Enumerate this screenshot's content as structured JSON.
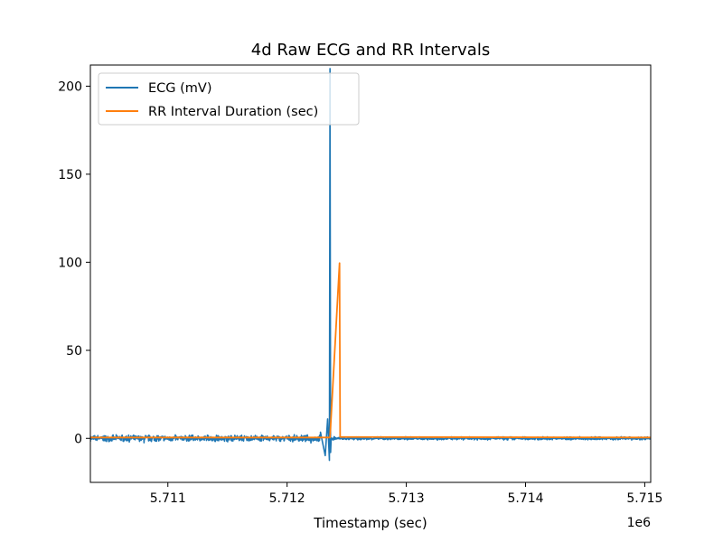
{
  "chart_data": {
    "type": "line",
    "title": "4d Raw ECG and RR Intervals",
    "xlabel": "Timestamp (sec)",
    "ylabel": "",
    "x_offset_label": "1e6",
    "xlim": [
      5.71035,
      5.71505
    ],
    "ylim": [
      -25,
      212
    ],
    "x_ticks": [
      5.711,
      5.712,
      5.713,
      5.714,
      5.715
    ],
    "x_tick_labels": [
      "5.711",
      "5.712",
      "5.713",
      "5.714",
      "5.715"
    ],
    "y_ticks": [
      0,
      50,
      100,
      150,
      200
    ],
    "y_tick_labels": [
      "0",
      "50",
      "100",
      "150",
      "200"
    ],
    "grid": false,
    "legend_position": "top-left",
    "series": [
      {
        "name": "ECG (mV)",
        "color": "#1f77b4",
        "baseline": 0,
        "noise_amplitude": 1.5,
        "x": [
          5.71035,
          5.7107,
          5.7108,
          5.711,
          5.7112,
          5.7116,
          5.7118,
          5.71205,
          5.7122,
          5.71228,
          5.71232,
          5.71234,
          5.712355,
          5.71236,
          5.712365,
          5.71237,
          5.71238,
          5.71245,
          5.7126,
          5.714,
          5.71505
        ],
        "values": [
          1.2,
          0.8,
          -2.5,
          0.6,
          1.8,
          0.4,
          -1.2,
          0.9,
          -2.6,
          3.5,
          -9.8,
          11.0,
          -12.5,
          210,
          -8.0,
          0.2,
          -0.1,
          0.1,
          0.8,
          0.4,
          0.5
        ]
      },
      {
        "name": "RR Interval Duration (sec)",
        "color": "#ff7f0e",
        "x": [
          5.71035,
          5.71236,
          5.71244,
          5.712445,
          5.71505
        ],
        "values": [
          0.5,
          0.5,
          99.5,
          0.8,
          0.5
        ]
      }
    ]
  }
}
